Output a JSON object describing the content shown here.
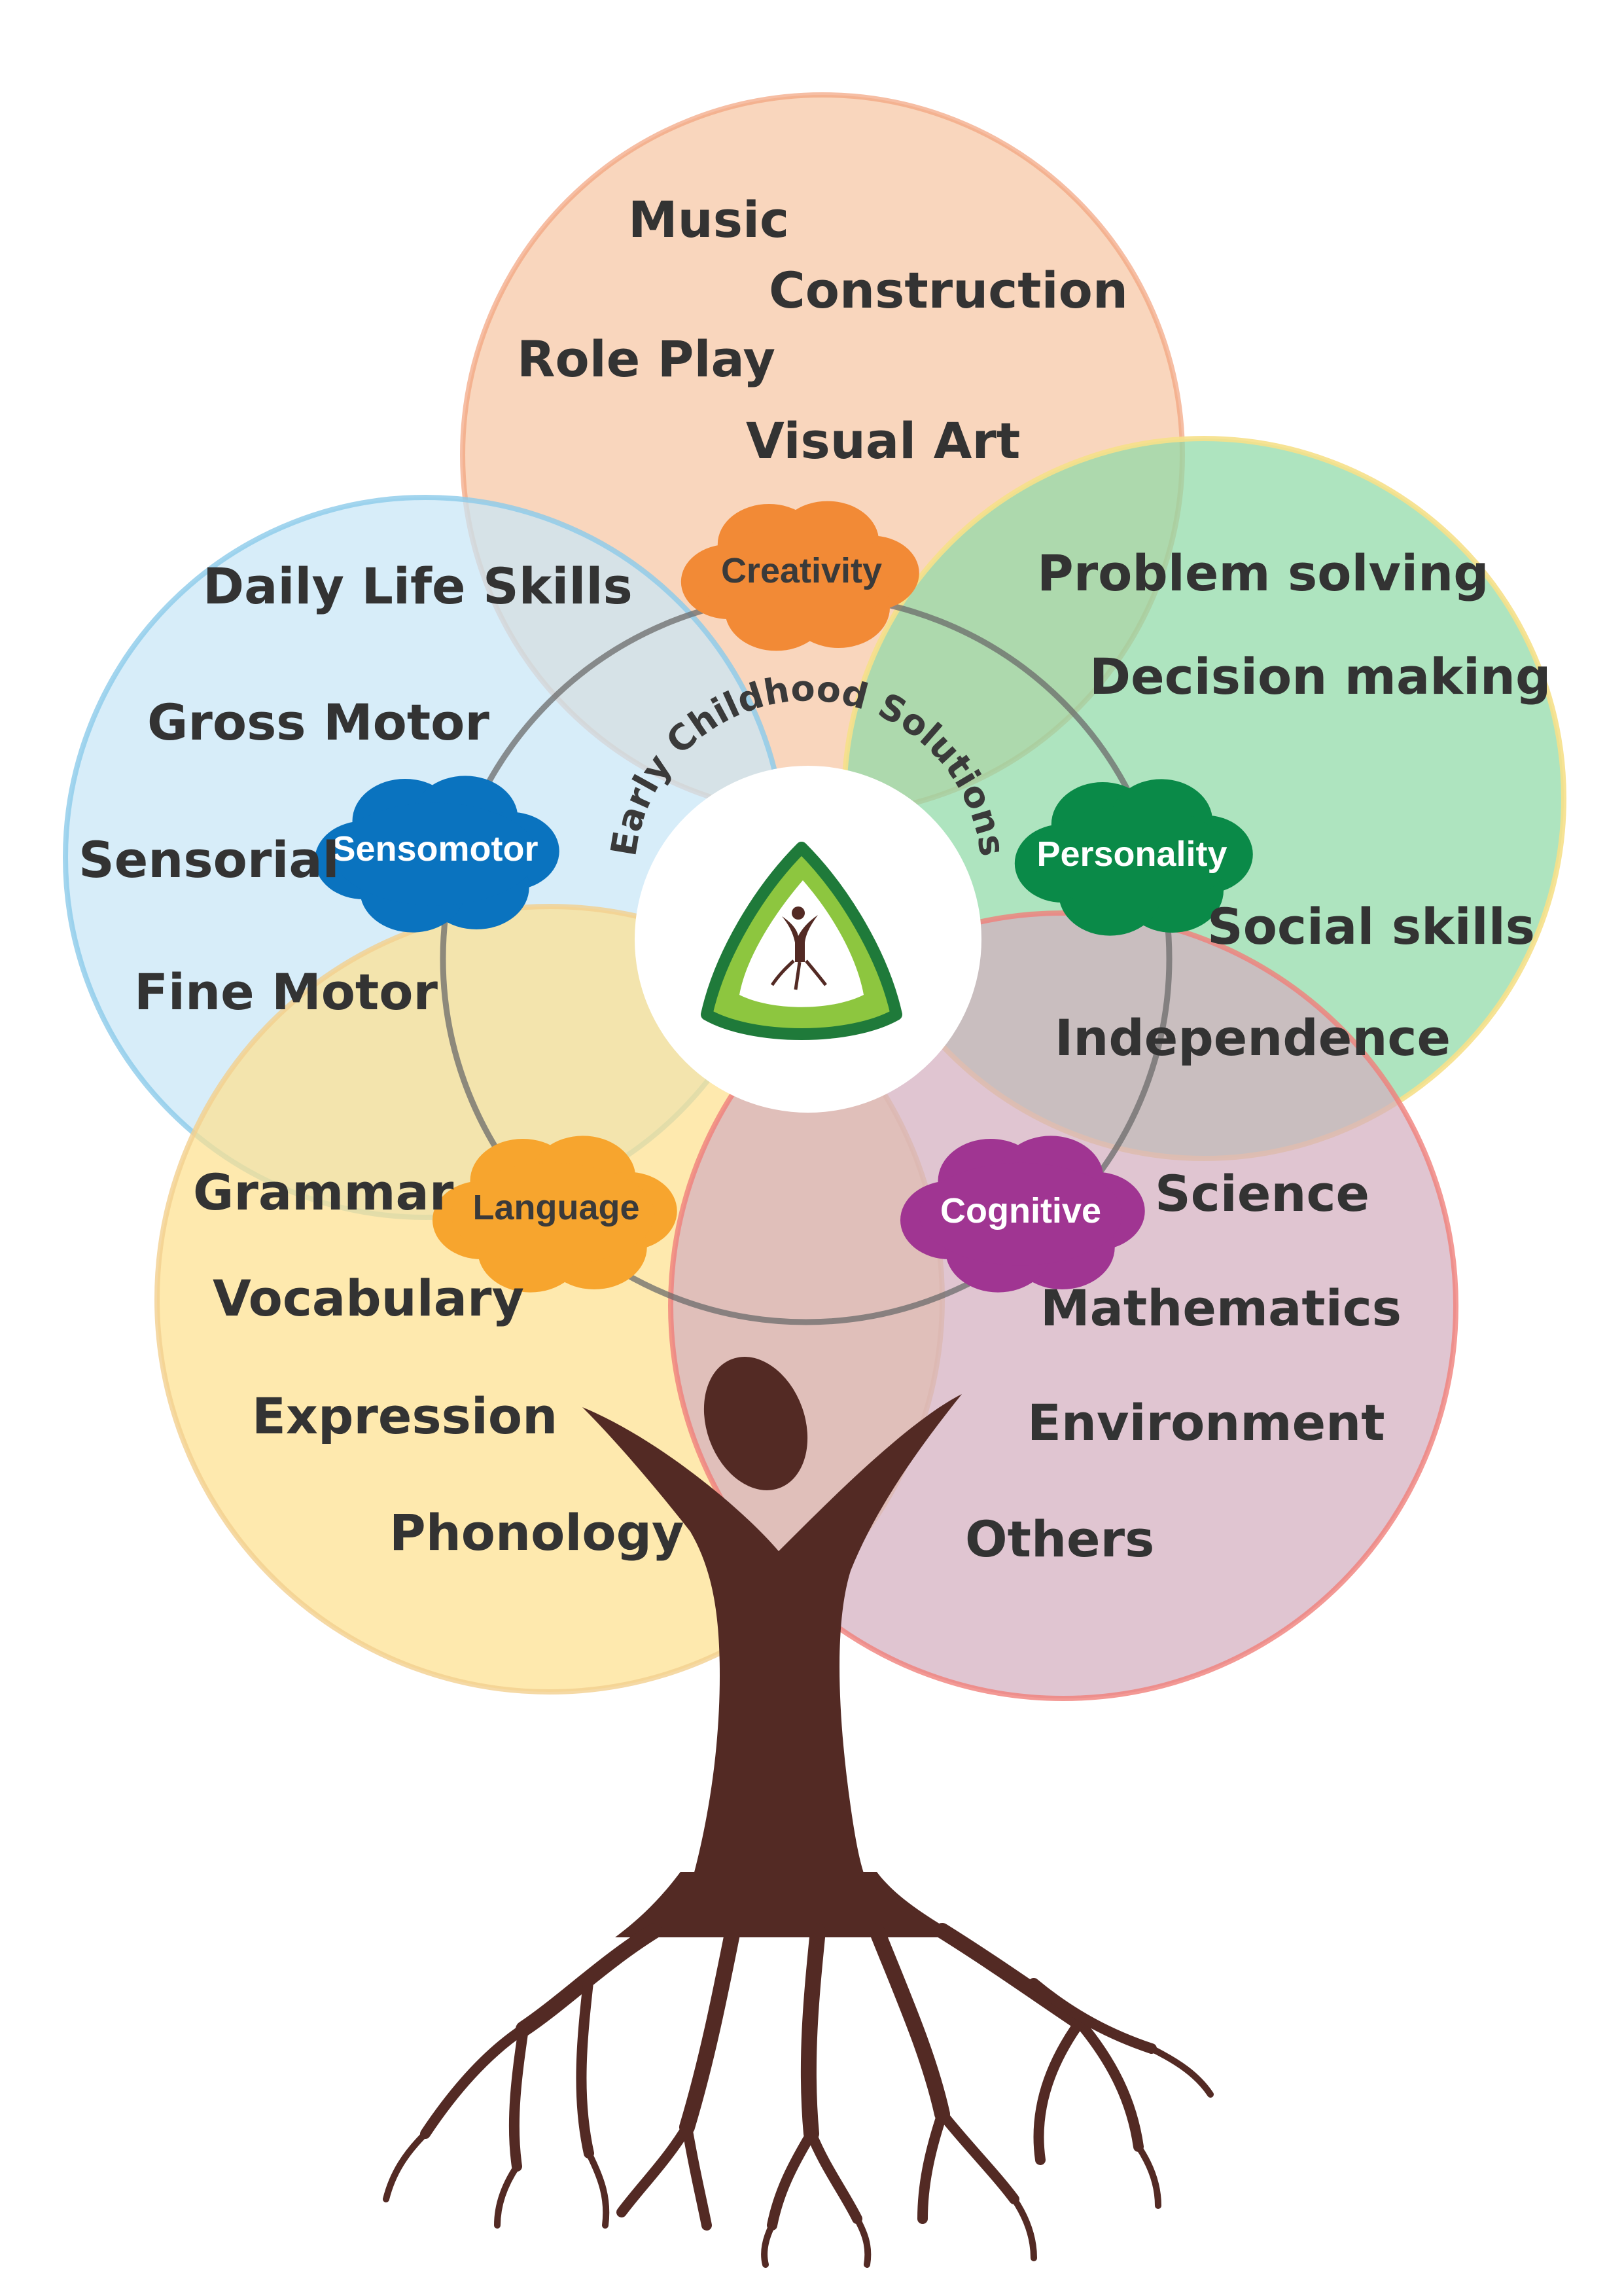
{
  "logo": {
    "text": "Early Childhood Solutions"
  },
  "domains": {
    "creativity": {
      "label": "Creativity",
      "circle_color": "#f6c6a4",
      "cloud_color": "#f28a36",
      "label_color": "#3a3a3a",
      "skills": [
        "Music",
        "Construction",
        "Role Play",
        "Visual Art"
      ]
    },
    "sensomotor": {
      "label": "Sensomotor",
      "circle_color": "#c7e6f7",
      "cloud_color": "#0a73bf",
      "label_color": "#ffffff",
      "skills": [
        "Daily Life Skills",
        "Gross Motor",
        "Sensorial",
        "Fine Motor"
      ]
    },
    "personality": {
      "label": "Personality",
      "circle_color": "#8fd9a6",
      "cloud_color": "#0a8a48",
      "label_color": "#ffffff",
      "skills": [
        "Problem solving",
        "Decision making",
        "Social skills",
        "Independence"
      ]
    },
    "language": {
      "label": "Language",
      "circle_color": "#fde08f",
      "cloud_color": "#f7a52e",
      "label_color": "#3a3a3a",
      "skills": [
        "Grammar",
        "Vocabulary",
        "Expression",
        "Phonology"
      ]
    },
    "cognitive": {
      "label": "Cognitive",
      "circle_color": "#d4aebf",
      "cloud_color": "#a03592",
      "label_color": "#ffffff",
      "skills": [
        "Science",
        "Mathematics",
        "Environment",
        "Others"
      ]
    }
  },
  "tree_color": "#532a24"
}
